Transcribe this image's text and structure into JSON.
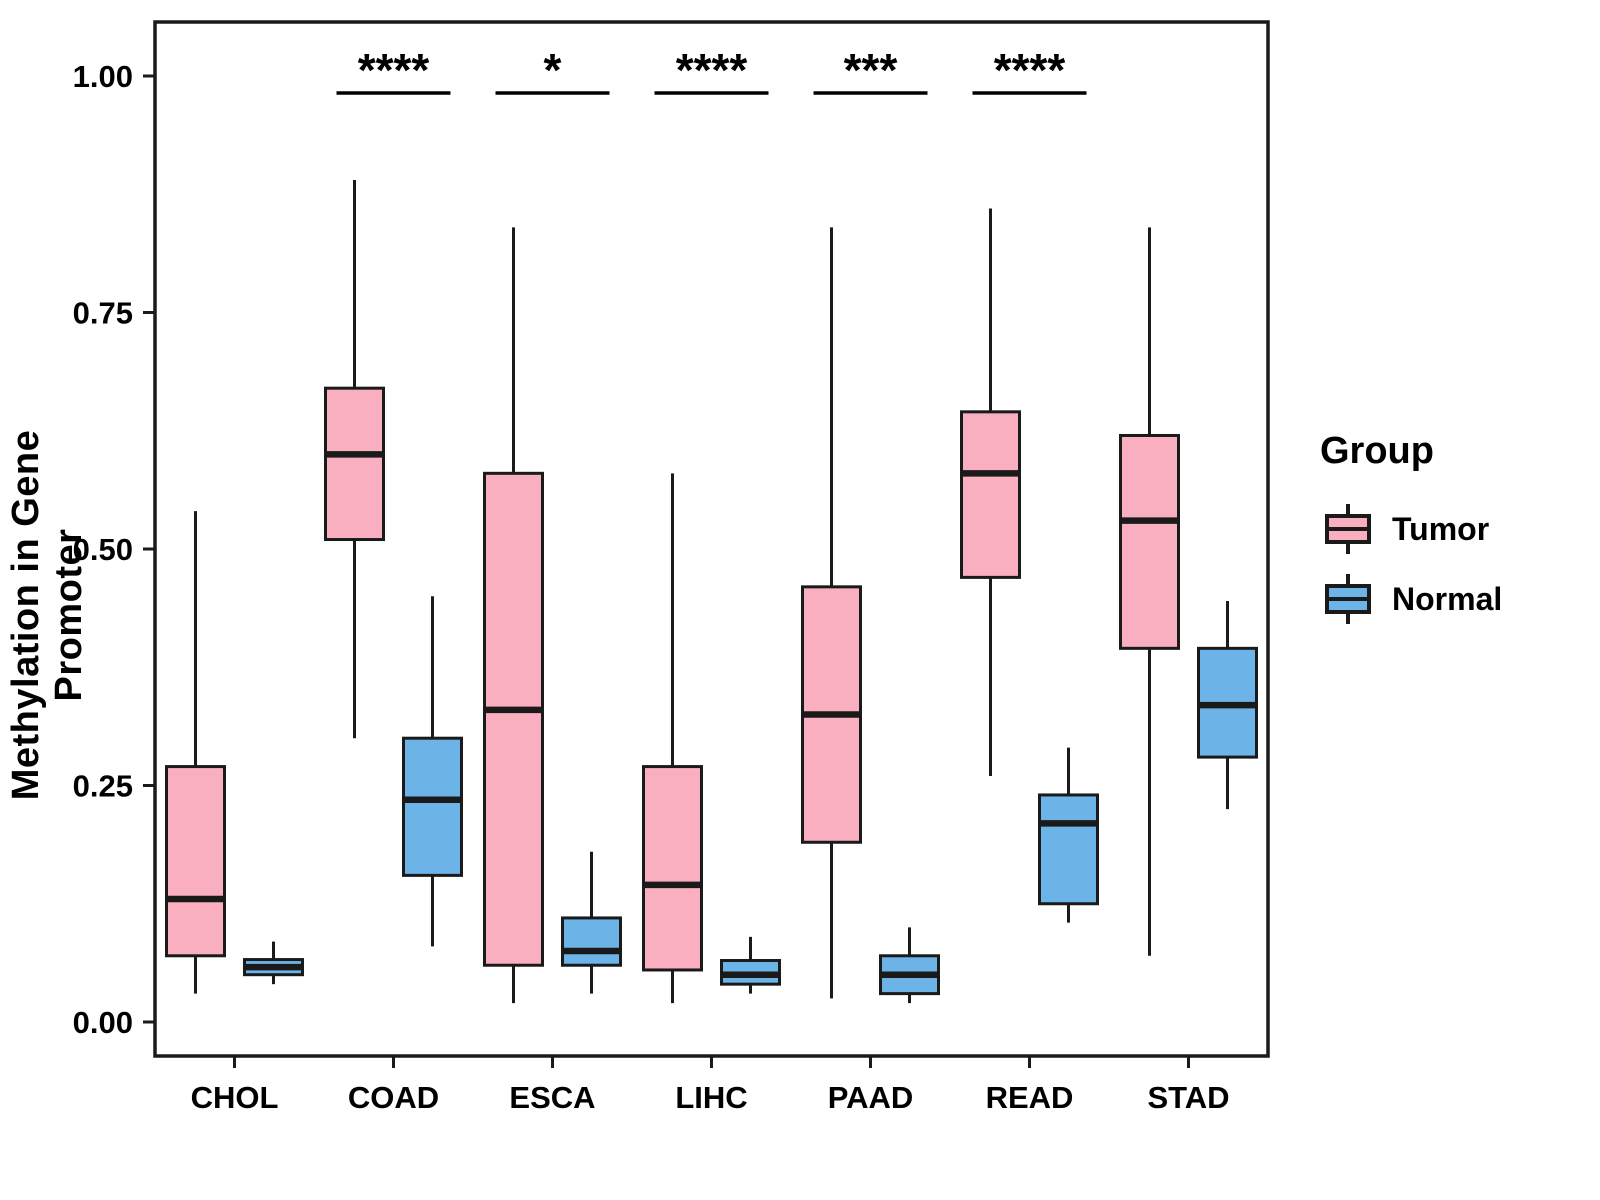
{
  "chart_data": {
    "type": "boxplot",
    "title": "",
    "xlabel": "",
    "ylabel": "Methylation in Gene Promoter",
    "ylim": [
      0.0,
      1.05
    ],
    "yticks": [
      0.0,
      0.25,
      0.5,
      0.75,
      1.0
    ],
    "ytick_labels": [
      "0.00",
      "0.25",
      "0.50",
      "0.75",
      "1.00"
    ],
    "categories": [
      "CHOL",
      "COAD",
      "ESCA",
      "LIHC",
      "PAAD",
      "READ",
      "STAD"
    ],
    "grid": "off",
    "legend_position": "right",
    "legend": {
      "title": "Group",
      "entries": [
        {
          "label": "Tumor",
          "color": "#F9AFC0"
        },
        {
          "label": "Normal",
          "color": "#6CB4E8"
        }
      ]
    },
    "significance": [
      {
        "category": "COAD",
        "label": "****"
      },
      {
        "category": "ESCA",
        "label": "*"
      },
      {
        "category": "LIHC",
        "label": "****"
      },
      {
        "category": "PAAD",
        "label": "***"
      },
      {
        "category": "READ",
        "label": "****"
      }
    ],
    "series": [
      {
        "name": "Tumor",
        "color": "#F9AFC0",
        "boxes": [
          {
            "category": "CHOL",
            "whisker_low": 0.03,
            "q1": 0.07,
            "median": 0.13,
            "q3": 0.27,
            "whisker_high": 0.54
          },
          {
            "category": "COAD",
            "whisker_low": 0.3,
            "q1": 0.51,
            "median": 0.6,
            "q3": 0.67,
            "whisker_high": 0.89
          },
          {
            "category": "ESCA",
            "whisker_low": 0.02,
            "q1": 0.06,
            "median": 0.33,
            "q3": 0.58,
            "whisker_high": 0.84
          },
          {
            "category": "LIHC",
            "whisker_low": 0.02,
            "q1": 0.055,
            "median": 0.145,
            "q3": 0.27,
            "whisker_high": 0.58
          },
          {
            "category": "PAAD",
            "whisker_low": 0.025,
            "q1": 0.19,
            "median": 0.325,
            "q3": 0.46,
            "whisker_high": 0.84
          },
          {
            "category": "READ",
            "whisker_low": 0.26,
            "q1": 0.47,
            "median": 0.58,
            "q3": 0.645,
            "whisker_high": 0.86
          },
          {
            "category": "STAD",
            "whisker_low": 0.07,
            "q1": 0.395,
            "median": 0.53,
            "q3": 0.62,
            "whisker_high": 0.84
          }
        ]
      },
      {
        "name": "Normal",
        "color": "#6CB4E8",
        "boxes": [
          {
            "category": "CHOL",
            "whisker_low": 0.04,
            "q1": 0.05,
            "median": 0.058,
            "q3": 0.066,
            "whisker_high": 0.085
          },
          {
            "category": "COAD",
            "whisker_low": 0.08,
            "q1": 0.155,
            "median": 0.235,
            "q3": 0.3,
            "whisker_high": 0.45
          },
          {
            "category": "ESCA",
            "whisker_low": 0.03,
            "q1": 0.06,
            "median": 0.075,
            "q3": 0.11,
            "whisker_high": 0.18
          },
          {
            "category": "LIHC",
            "whisker_low": 0.03,
            "q1": 0.04,
            "median": 0.05,
            "q3": 0.065,
            "whisker_high": 0.09
          },
          {
            "category": "PAAD",
            "whisker_low": 0.02,
            "q1": 0.03,
            "median": 0.05,
            "q3": 0.07,
            "whisker_high": 0.1
          },
          {
            "category": "READ",
            "whisker_low": 0.105,
            "q1": 0.125,
            "median": 0.21,
            "q3": 0.24,
            "whisker_high": 0.29
          },
          {
            "category": "STAD",
            "whisker_low": 0.225,
            "q1": 0.28,
            "median": 0.335,
            "q3": 0.395,
            "whisker_high": 0.445
          }
        ]
      }
    ],
    "style": {
      "stroke_color": "#1A1A1A",
      "background": "#FFFFFF"
    }
  }
}
